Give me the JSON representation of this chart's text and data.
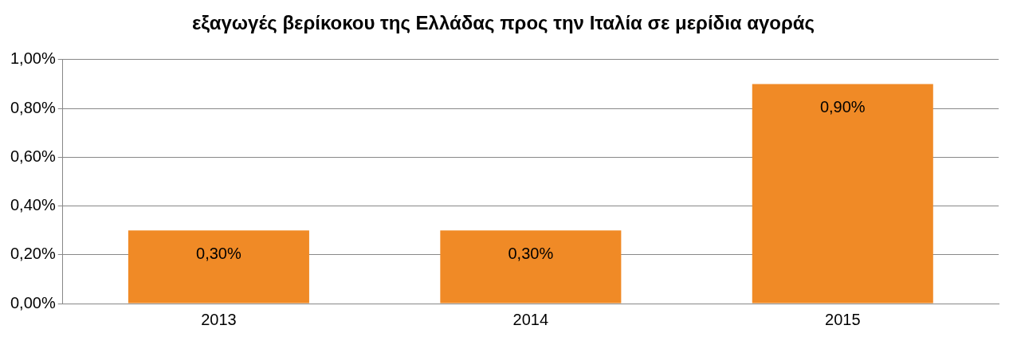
{
  "chart_data": {
    "type": "bar",
    "title": "εξαγωγές βερίκοκου της Ελλάδας προς την Ιταλία σε μερίδια αγοράς",
    "categories": [
      "2013",
      "2014",
      "2015"
    ],
    "values": [
      0.3,
      0.3,
      0.9
    ],
    "value_labels": [
      "0,30%",
      "0,30%",
      "0,90%"
    ],
    "color": "#f08a26",
    "ylim": [
      0,
      1
    ],
    "yticks": [
      {
        "value": 0,
        "label": "0,00%"
      },
      {
        "value": 0.2,
        "label": "0,20%"
      },
      {
        "value": 0.4,
        "label": "0,40%"
      },
      {
        "value": 0.6,
        "label": "0,60%"
      },
      {
        "value": 0.8,
        "label": "0,80%"
      },
      {
        "value": 1,
        "label": "1,00%"
      }
    ],
    "grid": "y"
  }
}
